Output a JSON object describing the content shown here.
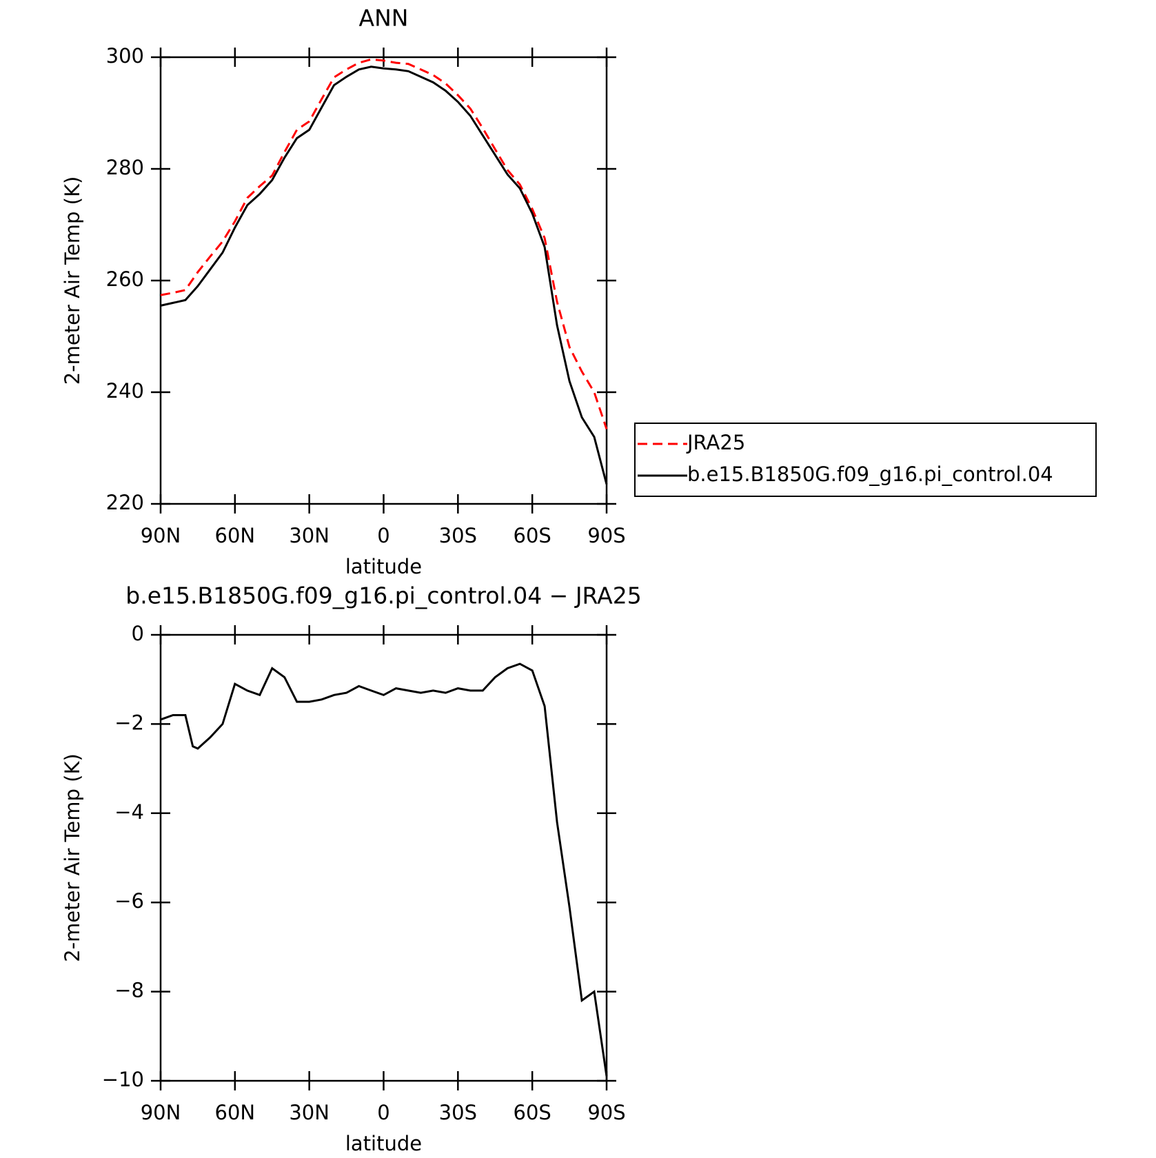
{
  "chart_data": [
    {
      "type": "line",
      "title": "ANN",
      "xlabel": "latitude",
      "ylabel": "2-meter Air Temp (K)",
      "x": [
        90,
        85,
        80,
        75,
        70,
        65,
        60,
        55,
        50,
        45,
        40,
        35,
        30,
        25,
        20,
        15,
        10,
        5,
        0,
        -5,
        -10,
        -15,
        -20,
        -25,
        -30,
        -35,
        -40,
        -45,
        -50,
        -55,
        -60,
        -65,
        -70,
        -75,
        -80,
        -85,
        -90
      ],
      "series": [
        {
          "name": "JRA25",
          "color": "#ff0000",
          "dash": true,
          "values": [
            257.4,
            257.8,
            258.3,
            261.5,
            264.3,
            267,
            270.6,
            274.8,
            276.9,
            278.8,
            283,
            287,
            288.5,
            292.5,
            296.4,
            297.8,
            299,
            299.6,
            299.4,
            299,
            298.8,
            297.8,
            296.8,
            295.3,
            293.2,
            290.8,
            287.3,
            283.5,
            279.8,
            277.2,
            272.8,
            267.6,
            256.2,
            248.1,
            243.7,
            240,
            233.4
          ]
        },
        {
          "name": "b.e15.B1850G.f09_g16.pi_control.04",
          "color": "#000000",
          "dash": false,
          "values": [
            255.5,
            256,
            256.5,
            259,
            262,
            265,
            269.5,
            273.5,
            275.5,
            278,
            282,
            285.5,
            287,
            291,
            295,
            296.5,
            297.8,
            298.3,
            298,
            297.8,
            297.5,
            296.5,
            295.5,
            294,
            292,
            289.5,
            286,
            282.5,
            279,
            276.5,
            272,
            266,
            252,
            242,
            235.5,
            232,
            223.5
          ]
        }
      ],
      "xlim": [
        90,
        -90
      ],
      "xticks": [
        {
          "value": 90,
          "label": "90N"
        },
        {
          "value": 60,
          "label": "60N"
        },
        {
          "value": 30,
          "label": "30N"
        },
        0,
        {
          "value": -30,
          "label": "30S"
        },
        {
          "value": -60,
          "label": "60S"
        },
        {
          "value": -90,
          "label": "90S"
        }
      ],
      "ylim": [
        220,
        300
      ],
      "yticks": [
        220,
        240,
        260,
        280,
        300
      ],
      "legend": "right"
    },
    {
      "type": "line",
      "title": "b.e15.B1850G.f09_g16.pi_control.04 − JRA25",
      "xlabel": "latitude",
      "ylabel": "2-meter Air Temp (K)",
      "x": [
        90,
        85,
        80,
        77,
        75,
        70,
        65,
        60,
        55,
        50,
        45,
        40,
        35,
        30,
        25,
        20,
        15,
        10,
        5,
        0,
        -5,
        -10,
        -15,
        -20,
        -25,
        -30,
        -35,
        -40,
        -45,
        -50,
        -55,
        -60,
        -65,
        -70,
        -75,
        -80,
        -85,
        -90
      ],
      "values": [
        -1.9,
        -1.8,
        -1.8,
        -2.5,
        -2.55,
        -2.3,
        -2.0,
        -1.1,
        -1.25,
        -1.35,
        -0.75,
        -0.95,
        -1.5,
        -1.5,
        -1.45,
        -1.35,
        -1.3,
        -1.15,
        -1.25,
        -1.35,
        -1.2,
        -1.25,
        -1.3,
        -1.25,
        -1.3,
        -1.2,
        -1.25,
        -1.25,
        -0.95,
        -0.75,
        -0.65,
        -0.8,
        -1.6,
        -4.2,
        -6.1,
        -8.2,
        -8.0,
        -9.9
      ],
      "color": "#000000",
      "xlim": [
        90,
        -90
      ],
      "xticks": [
        {
          "value": 90,
          "label": "90N"
        },
        {
          "value": 60,
          "label": "60N"
        },
        {
          "value": 30,
          "label": "30N"
        },
        0,
        {
          "value": -30,
          "label": "30S"
        },
        {
          "value": -60,
          "label": "60S"
        },
        {
          "value": -90,
          "label": "90S"
        }
      ],
      "ylim": [
        -10,
        0
      ],
      "yticks": [
        {
          "value": -10,
          "label": "−10"
        },
        {
          "value": -8,
          "label": "−8"
        },
        {
          "value": -6,
          "label": "−6"
        },
        {
          "value": -4,
          "label": "−4"
        },
        {
          "value": -2,
          "label": "−2"
        },
        0
      ]
    }
  ]
}
